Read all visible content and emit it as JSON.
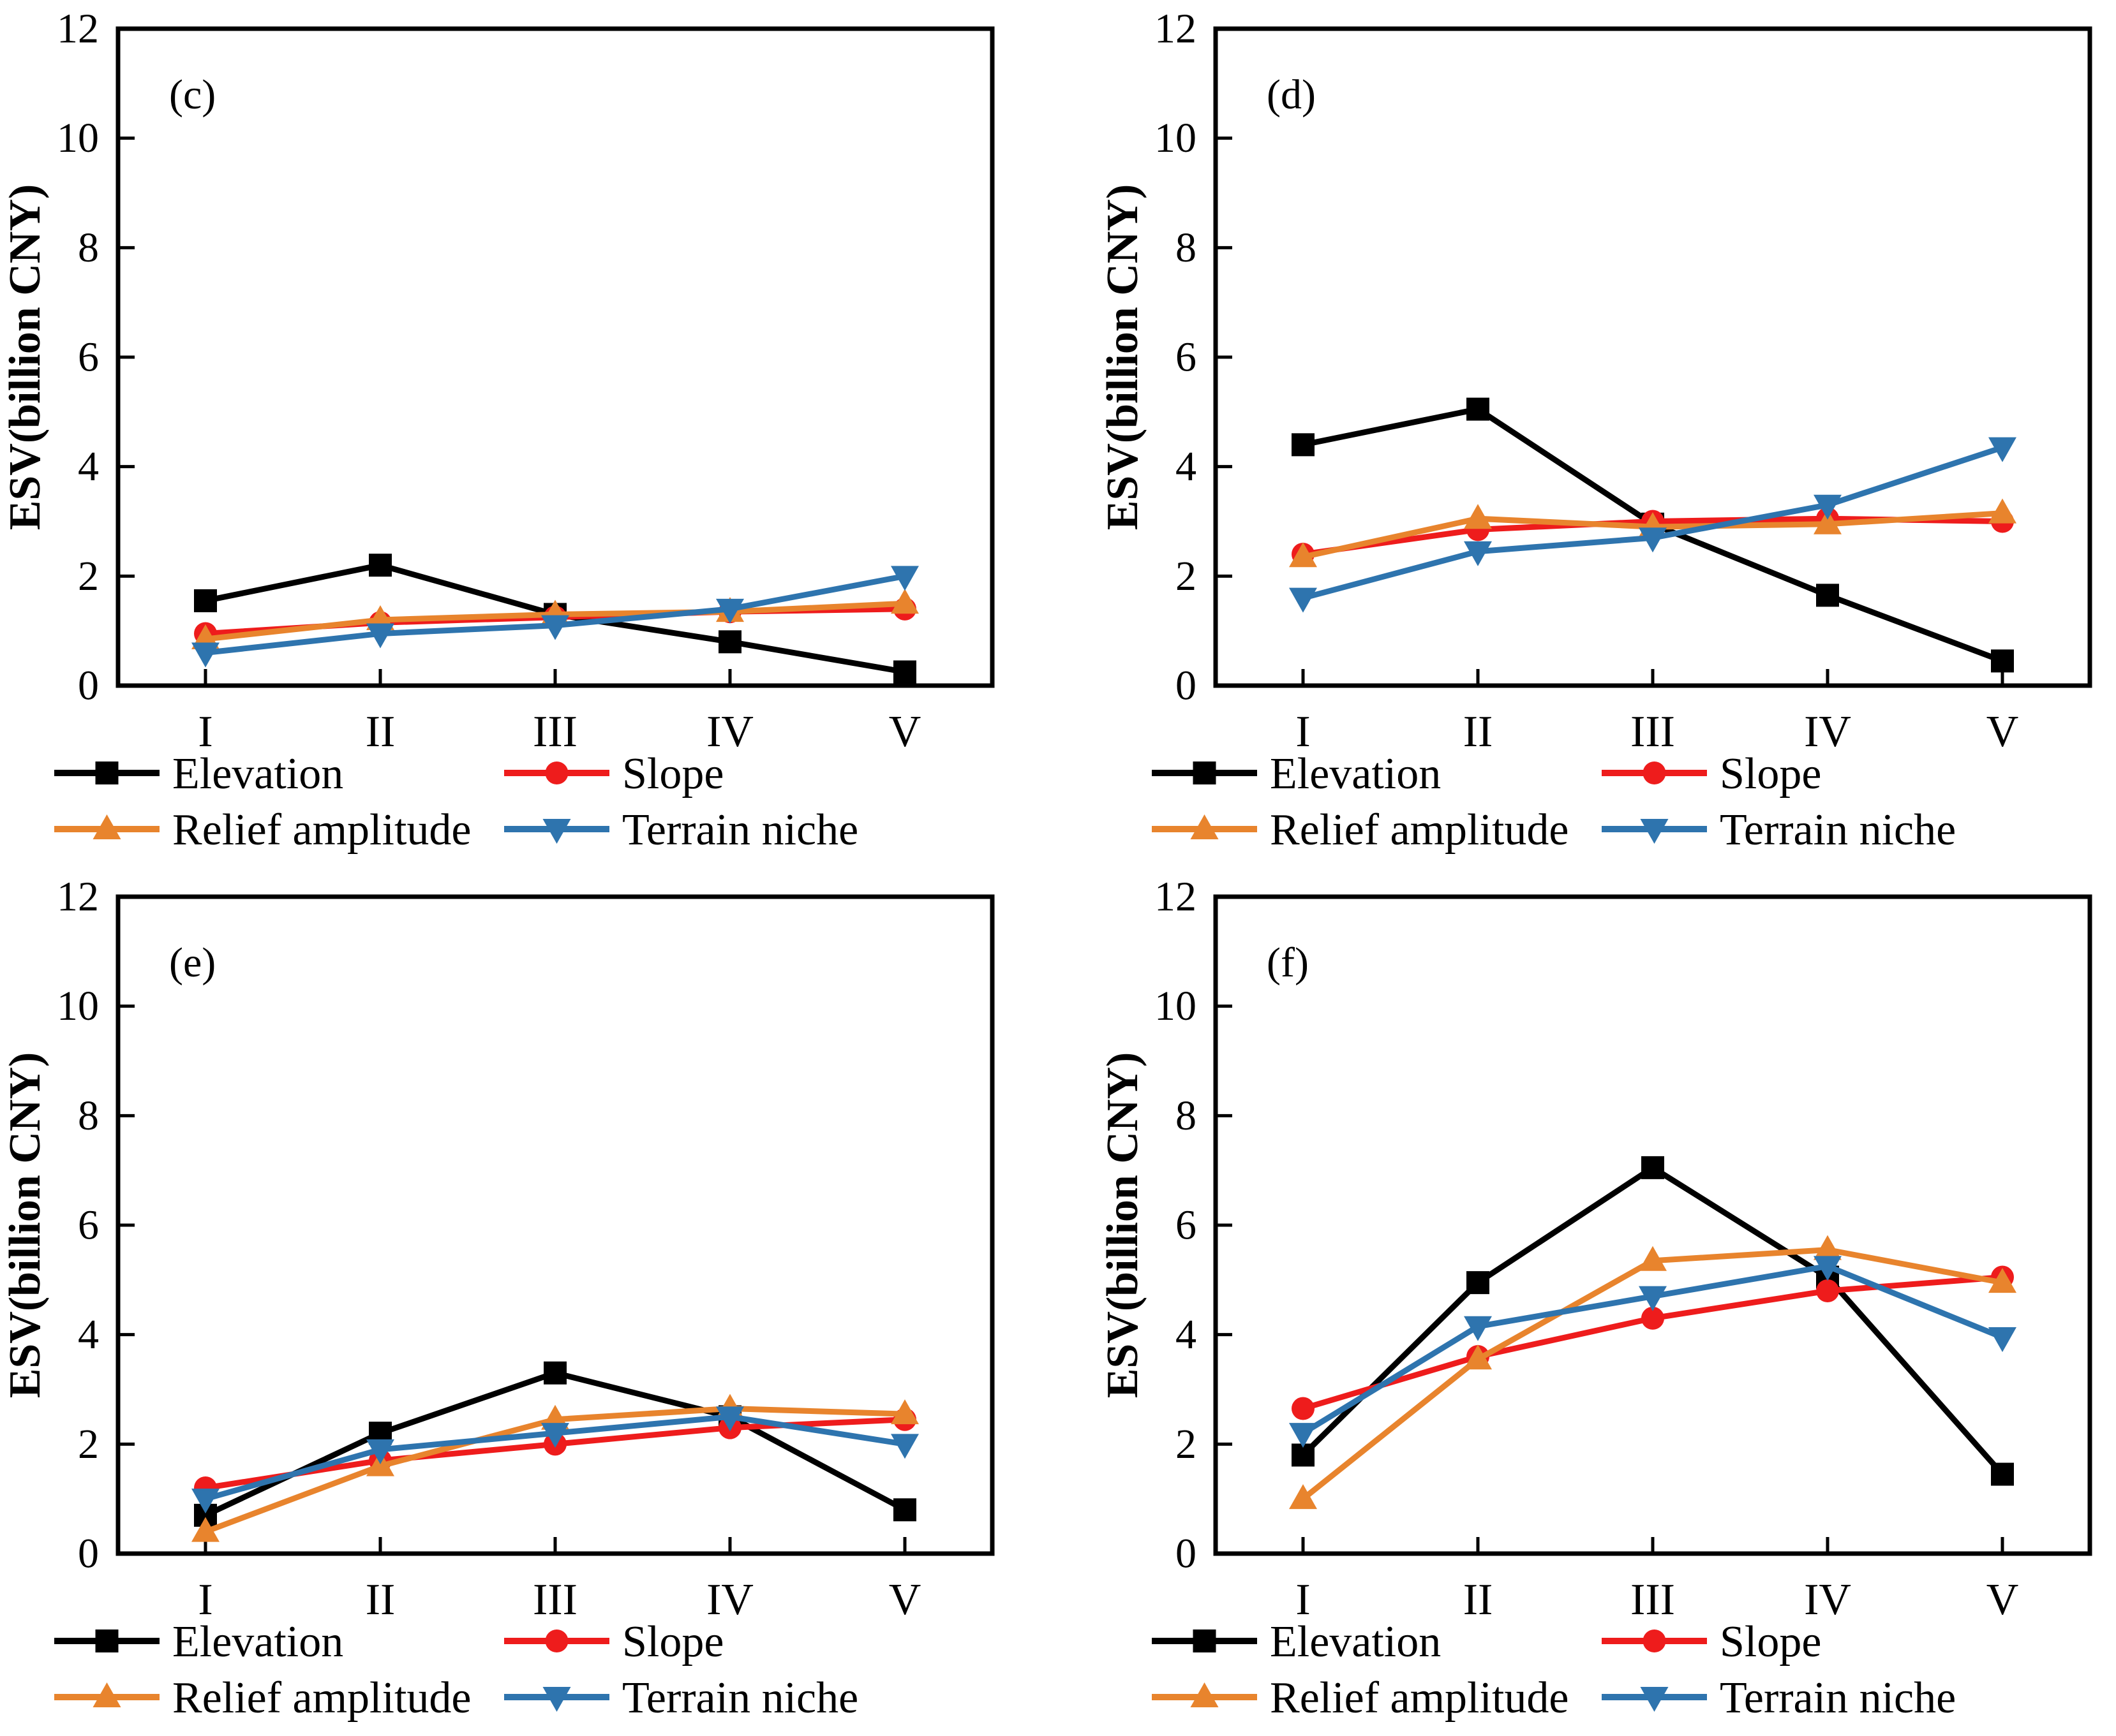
{
  "figure": {
    "background_color": "#ffffff",
    "axis_color": "#000000",
    "series_colors": {
      "elevation": "#000000",
      "slope": "#ee1c1c",
      "relief_amplitude": "#e8842d",
      "terrain_niche": "#2e74ae"
    }
  },
  "chart_data": [
    {
      "type": "line",
      "panel_label": "(c)",
      "ylabel": "ESV(billion CNY)",
      "xlabel": "",
      "ylim": [
        0,
        12
      ],
      "ytick_labels": [
        "0",
        "2",
        "4",
        "6",
        "8",
        "10",
        "12"
      ],
      "categories": [
        "I",
        "II",
        "III",
        "IV",
        "V"
      ],
      "grid": false,
      "legend_position": "below",
      "series": [
        {
          "name": "Elevation",
          "marker": "square",
          "color": "#000000",
          "values": [
            1.55,
            2.2,
            1.3,
            0.8,
            0.25
          ]
        },
        {
          "name": "Slope",
          "marker": "circle",
          "color": "#ee1c1c",
          "values": [
            0.95,
            1.15,
            1.25,
            1.35,
            1.4
          ]
        },
        {
          "name": "Relief amplitude",
          "marker": "triangle-up",
          "color": "#e8842d",
          "values": [
            0.85,
            1.2,
            1.3,
            1.35,
            1.5
          ]
        },
        {
          "name": "Terrain niche",
          "marker": "triangle-down",
          "color": "#2e74ae",
          "values": [
            0.6,
            0.95,
            1.1,
            1.4,
            2.0
          ]
        }
      ]
    },
    {
      "type": "line",
      "panel_label": "(d)",
      "ylabel": "ESV(billion CNY)",
      "xlabel": "",
      "ylim": [
        0,
        12
      ],
      "ytick_labels": [
        "0",
        "2",
        "4",
        "6",
        "8",
        "10",
        "12"
      ],
      "categories": [
        "I",
        "II",
        "III",
        "IV",
        "V"
      ],
      "grid": false,
      "legend_position": "below",
      "series": [
        {
          "name": "Elevation",
          "marker": "square",
          "color": "#000000",
          "values": [
            4.4,
            5.05,
            2.95,
            1.65,
            0.45
          ]
        },
        {
          "name": "Slope",
          "marker": "circle",
          "color": "#ee1c1c",
          "values": [
            2.4,
            2.85,
            3.0,
            3.05,
            3.0
          ]
        },
        {
          "name": "Relief amplitude",
          "marker": "triangle-up",
          "color": "#e8842d",
          "values": [
            2.35,
            3.05,
            2.9,
            2.95,
            3.15
          ]
        },
        {
          "name": "Terrain niche",
          "marker": "triangle-down",
          "color": "#2e74ae",
          "values": [
            1.6,
            2.45,
            2.7,
            3.3,
            4.35
          ]
        }
      ]
    },
    {
      "type": "line",
      "panel_label": "(e)",
      "ylabel": "ESV(billion CNY)",
      "xlabel": "",
      "ylim": [
        0,
        12
      ],
      "ytick_labels": [
        "0",
        "2",
        "4",
        "6",
        "8",
        "10",
        "12"
      ],
      "categories": [
        "I",
        "II",
        "III",
        "IV",
        "V"
      ],
      "grid": false,
      "legend_position": "below",
      "series": [
        {
          "name": "Elevation",
          "marker": "square",
          "color": "#000000",
          "values": [
            0.7,
            2.2,
            3.3,
            2.5,
            0.8
          ]
        },
        {
          "name": "Slope",
          "marker": "circle",
          "color": "#ee1c1c",
          "values": [
            1.2,
            1.7,
            2.0,
            2.3,
            2.45
          ]
        },
        {
          "name": "Relief amplitude",
          "marker": "triangle-up",
          "color": "#e8842d",
          "values": [
            0.4,
            1.6,
            2.45,
            2.65,
            2.55
          ]
        },
        {
          "name": "Terrain niche",
          "marker": "triangle-down",
          "color": "#2e74ae",
          "values": [
            1.0,
            1.9,
            2.2,
            2.5,
            2.0
          ]
        }
      ]
    },
    {
      "type": "line",
      "panel_label": "(f)",
      "ylabel": "ESV(billion CNY)",
      "xlabel": "",
      "ylim": [
        0,
        12
      ],
      "ytick_labels": [
        "0",
        "2",
        "4",
        "6",
        "8",
        "10",
        "12"
      ],
      "categories": [
        "I",
        "II",
        "III",
        "IV",
        "V"
      ],
      "grid": false,
      "legend_position": "below",
      "series": [
        {
          "name": "Elevation",
          "marker": "square",
          "color": "#000000",
          "values": [
            1.8,
            4.95,
            7.05,
            5.05,
            1.45
          ]
        },
        {
          "name": "Slope",
          "marker": "circle",
          "color": "#ee1c1c",
          "values": [
            2.65,
            3.6,
            4.3,
            4.8,
            5.05
          ]
        },
        {
          "name": "Relief amplitude",
          "marker": "triangle-up",
          "color": "#e8842d",
          "values": [
            1.0,
            3.55,
            5.35,
            5.55,
            4.95
          ]
        },
        {
          "name": "Terrain niche",
          "marker": "triangle-down",
          "color": "#2e74ae",
          "values": [
            2.2,
            4.15,
            4.7,
            5.25,
            3.95
          ]
        }
      ]
    }
  ]
}
